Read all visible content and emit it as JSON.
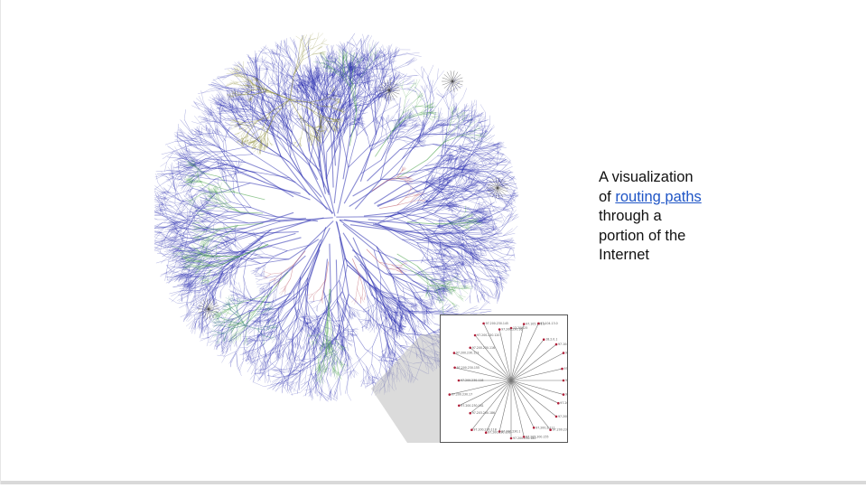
{
  "caption": {
    "line1": "A visualization",
    "line2_prefix": "of ",
    "link_text": "routing paths",
    "line3": "through a",
    "line4": "portion of the",
    "line5": "Internet"
  },
  "image": {
    "description_icon": "internet-network-map",
    "colors": {
      "primary": "#2b2fb0",
      "secondary": "#3d9a3d",
      "accent_olive": "#7a7a1a",
      "accent_red": "#b03a4a",
      "accent_teal": "#2a7a70",
      "dark": "#222222"
    }
  },
  "inset": {
    "labels": [
      "13.209.25",
      "97.105.101.9",
      "97.104.13.0",
      "18.2.0.1",
      "97.104.18.81",
      "97.106.118.1",
      "97.200.230.130",
      "97.200.230.116",
      "97.203.200.185",
      "97.200.230.119",
      "97.200.230.130",
      "97.200.230.177",
      "97.200.2.111",
      "97.205.200.155",
      "97.200.230.180",
      "97.200.230.1",
      "97.200.230.131",
      "97.200.230.118",
      "97.203.200.186",
      "97.200.230.181",
      "97.200.230.17",
      "97.200.230.118",
      "97.200.230.155",
      "97.200.230.153",
      "97.200.230.116",
      "97.200.230.120",
      "97.200.230.145",
      "97.200.230.16"
    ]
  }
}
